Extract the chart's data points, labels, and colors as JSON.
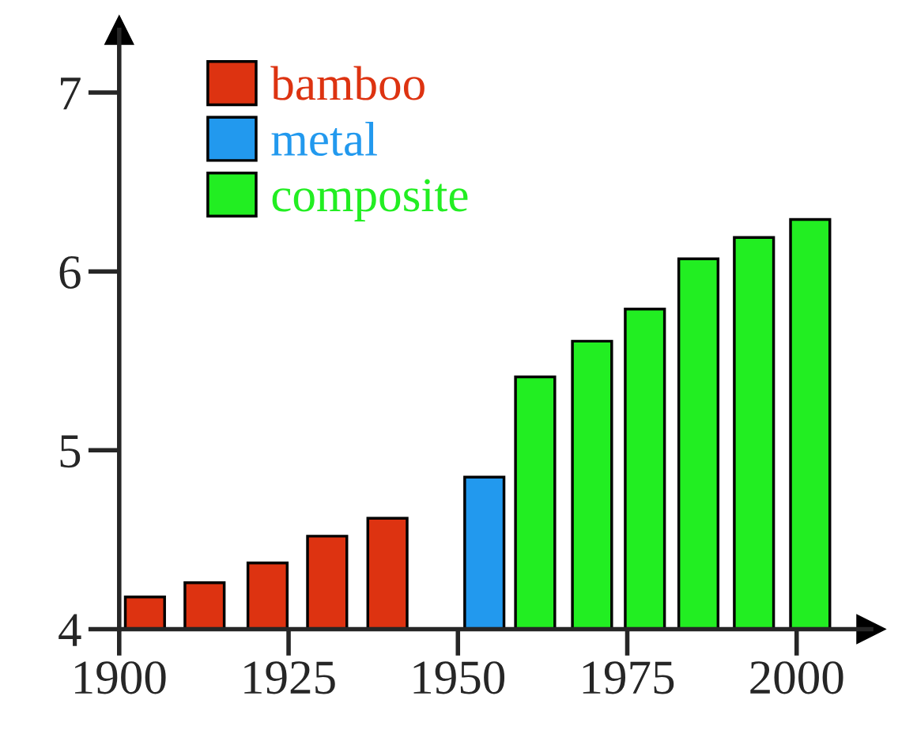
{
  "chart_data": {
    "type": "bar",
    "series": [
      {
        "name": "bamboo",
        "color": "#dd3311",
        "x": [
          1903.8,
          1912.6,
          1921.9,
          1930.7,
          1939.6
        ],
        "values": [
          4.18,
          4.26,
          4.37,
          4.52,
          4.62
        ]
      },
      {
        "name": "metal",
        "color": "#2299ee",
        "x": [
          1953.9
        ],
        "values": [
          4.85
        ]
      },
      {
        "name": "composite",
        "color": "#22ee22",
        "x": [
          1961.4,
          1969.8,
          1977.6,
          1985.5,
          1993.7,
          2002.0
        ],
        "values": [
          5.41,
          5.61,
          5.79,
          6.07,
          6.19,
          6.29
        ]
      }
    ],
    "xlim": [
      1900,
      2011
    ],
    "xticks": [
      1900,
      1925,
      1950,
      1975,
      2000
    ],
    "ylim": [
      4,
      7.35
    ],
    "yticks": [
      4,
      5,
      6,
      7
    ],
    "grid": false,
    "legend": "top left"
  }
}
